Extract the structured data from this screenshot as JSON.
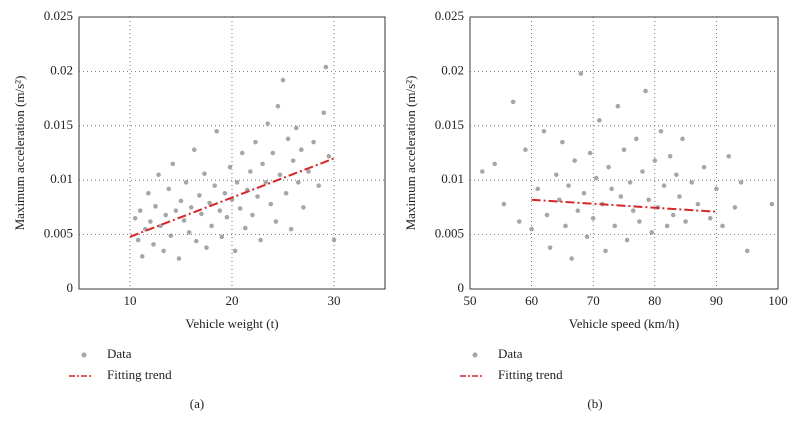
{
  "chart_data": [
    {
      "type": "scatter",
      "caption": "(a)",
      "x_label": "Vehicle weight (t)",
      "y_label": "Maximum acceleration (m/s²)",
      "xlim": [
        5,
        35
      ],
      "xticks": [
        10,
        20,
        30
      ],
      "ylim": [
        0,
        0.025
      ],
      "yticks": [
        0,
        0.005,
        0.01,
        0.015,
        0.02,
        0.025
      ],
      "grid": true,
      "series": [
        {
          "name": "Data",
          "color": "#a6a6a6",
          "x": [
            10.5,
            10.8,
            11,
            11.2,
            11.5,
            11.8,
            12,
            12.3,
            12.5,
            12.8,
            13,
            13.3,
            13.5,
            13.8,
            14,
            14.2,
            14.5,
            14.8,
            15,
            15.3,
            15.5,
            15.8,
            16,
            16.3,
            16.5,
            16.8,
            17,
            17.3,
            17.5,
            17.8,
            18,
            18.3,
            18.5,
            18.8,
            19,
            19.3,
            19.5,
            19.8,
            20,
            20.3,
            20.5,
            20.8,
            21,
            21.3,
            21.5,
            21.8,
            22,
            22.3,
            22.5,
            22.8,
            23,
            23.3,
            23.5,
            23.8,
            24,
            24.3,
            24.5,
            24.7,
            25,
            25.3,
            25.5,
            25.8,
            26,
            26.3,
            26.5,
            26.8,
            27,
            27.5,
            28,
            28.5,
            29,
            29.2,
            29.5,
            30
          ],
          "values": [
            0.0065,
            0.0045,
            0.0072,
            0.003,
            0.0055,
            0.0088,
            0.0062,
            0.0041,
            0.0076,
            0.0105,
            0.0058,
            0.0035,
            0.0068,
            0.0092,
            0.0049,
            0.0115,
            0.0072,
            0.0028,
            0.0081,
            0.0063,
            0.0098,
            0.0052,
            0.0075,
            0.0128,
            0.0044,
            0.0086,
            0.0069,
            0.0106,
            0.0038,
            0.0079,
            0.0058,
            0.0095,
            0.0145,
            0.0072,
            0.0048,
            0.0088,
            0.0066,
            0.0112,
            0.0082,
            0.0035,
            0.0098,
            0.0074,
            0.0125,
            0.0056,
            0.0091,
            0.0108,
            0.0068,
            0.0135,
            0.0085,
            0.0045,
            0.0115,
            0.0098,
            0.0152,
            0.0078,
            0.0125,
            0.0062,
            0.0168,
            0.0105,
            0.0192,
            0.0088,
            0.0138,
            0.0055,
            0.0118,
            0.0148,
            0.0098,
            0.0128,
            0.0075,
            0.0108,
            0.0135,
            0.0095,
            0.0162,
            0.0204,
            0.0122,
            0.0045
          ]
        },
        {
          "name": "Fitting trend",
          "color": "#d62728",
          "kind": "line",
          "x": [
            10,
            30
          ],
          "values": [
            0.0048,
            0.012
          ]
        }
      ]
    },
    {
      "type": "scatter",
      "caption": "(b)",
      "x_label": "Vehicle speed (km/h)",
      "y_label": "Maximum acceleration (m/s²)",
      "xlim": [
        50,
        100
      ],
      "xticks": [
        50,
        60,
        70,
        80,
        90,
        100
      ],
      "ylim": [
        0,
        0.025
      ],
      "yticks": [
        0,
        0.005,
        0.01,
        0.015,
        0.02,
        0.025
      ],
      "grid": true,
      "series": [
        {
          "name": "Data",
          "color": "#a6a6a6",
          "x": [
            52,
            54,
            55.5,
            57,
            58,
            59,
            60,
            61,
            62,
            62.5,
            63,
            64,
            64.5,
            65,
            65.5,
            66,
            66.5,
            67,
            67.5,
            68,
            68.5,
            69,
            69.5,
            70,
            70.5,
            71,
            71.5,
            72,
            72.5,
            73,
            73.5,
            74,
            74.5,
            75,
            75.5,
            76,
            76.5,
            77,
            77.5,
            78,
            78.5,
            79,
            79.5,
            80,
            80.5,
            81,
            81.5,
            82,
            82.5,
            83,
            83.5,
            84,
            84.5,
            85,
            86,
            87,
            88,
            89,
            90,
            91,
            92,
            93,
            94,
            95,
            99
          ],
          "values": [
            0.0108,
            0.0115,
            0.0078,
            0.0172,
            0.0062,
            0.0128,
            0.0055,
            0.0092,
            0.0145,
            0.0068,
            0.0038,
            0.0105,
            0.0082,
            0.0135,
            0.0058,
            0.0095,
            0.0028,
            0.0118,
            0.0072,
            0.0198,
            0.0088,
            0.0048,
            0.0125,
            0.0065,
            0.0102,
            0.0155,
            0.0078,
            0.0035,
            0.0112,
            0.0092,
            0.0058,
            0.0168,
            0.0085,
            0.0128,
            0.0045,
            0.0098,
            0.0072,
            0.0138,
            0.0062,
            0.0108,
            0.0182,
            0.0082,
            0.0052,
            0.0118,
            0.0075,
            0.0145,
            0.0095,
            0.0058,
            0.0122,
            0.0068,
            0.0105,
            0.0085,
            0.0138,
            0.0062,
            0.0098,
            0.0078,
            0.0112,
            0.0065,
            0.0092,
            0.0058,
            0.0122,
            0.0075,
            0.0098,
            0.0035,
            0.0078
          ]
        },
        {
          "name": "Fitting trend",
          "color": "#d62728",
          "kind": "line",
          "x": [
            60,
            90
          ],
          "values": [
            0.0082,
            0.0071
          ]
        }
      ]
    }
  ]
}
